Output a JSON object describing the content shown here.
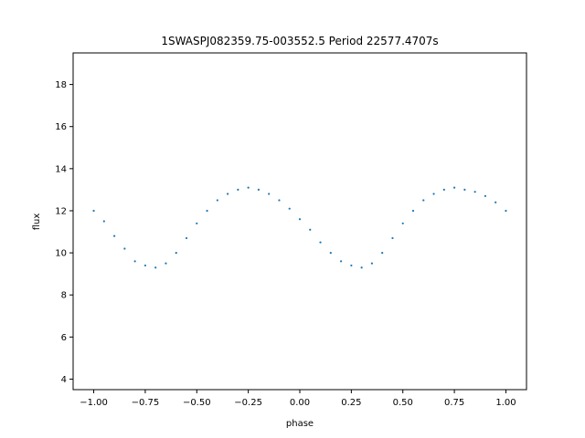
{
  "chart_data": {
    "type": "scatter",
    "title": "1SWASPJ082359.75-003552.5 Period 22577.4707s",
    "xlabel": "phase",
    "ylabel": "flux",
    "xlim": [
      -1.1,
      1.1
    ],
    "ylim": [
      3.5,
      19.5
    ],
    "xticks": [
      -1.0,
      -0.75,
      -0.5,
      -0.25,
      0.0,
      0.25,
      0.5,
      0.75,
      1.0
    ],
    "xtick_labels": [
      "−1.00",
      "−0.75",
      "−0.50",
      "−0.25",
      "0.00",
      "0.25",
      "0.50",
      "0.75",
      "1.00"
    ],
    "yticks": [
      4,
      6,
      8,
      10,
      12,
      14,
      16,
      18
    ],
    "ytick_labels": [
      "4",
      "6",
      "8",
      "10",
      "12",
      "14",
      "16",
      "18"
    ],
    "grid": false,
    "point_color": "#1f77b4",
    "series": [
      {
        "x": [
          -1.0,
          -0.95,
          -0.9,
          -0.85,
          -0.8,
          -0.75,
          -0.7,
          -0.65,
          -0.6,
          -0.55,
          -0.5,
          -0.45,
          -0.4,
          -0.35,
          -0.3,
          -0.25,
          -0.2,
          -0.15,
          -0.1,
          -0.05,
          0.0,
          0.05,
          0.1,
          0.15,
          0.2,
          0.25,
          0.3,
          0.35,
          0.4,
          0.45,
          0.5,
          0.55,
          0.6,
          0.65,
          0.7,
          0.75,
          0.8,
          0.85,
          0.9,
          0.95,
          1.0
        ],
        "y": [
          12.0,
          11.5,
          10.8,
          10.2,
          9.6,
          9.4,
          9.3,
          9.5,
          10.0,
          10.7,
          11.4,
          12.0,
          12.5,
          12.8,
          13.0,
          13.1,
          13.0,
          12.8,
          12.5,
          12.1,
          11.6,
          11.1,
          10.5,
          10.0,
          9.6,
          9.4,
          9.3,
          9.5,
          10.0,
          10.7,
          11.4,
          12.0,
          12.5,
          12.8,
          13.0,
          13.1,
          13.0,
          12.9,
          12.7,
          12.4,
          12.0
        ]
      }
    ]
  }
}
